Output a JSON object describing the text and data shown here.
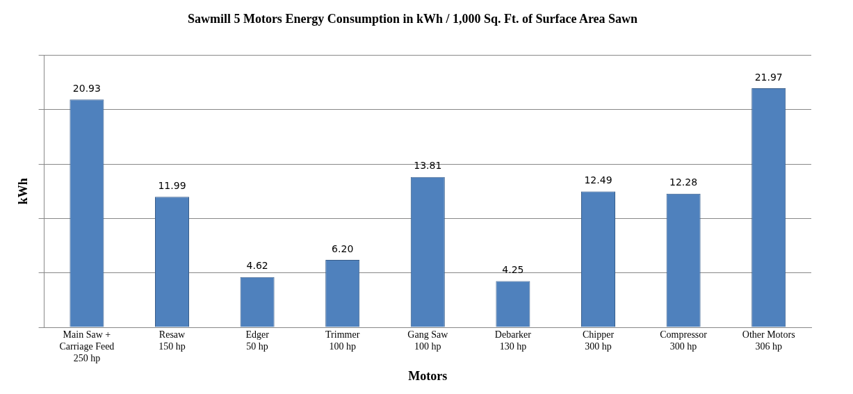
{
  "chart_data": {
    "type": "bar",
    "title": "Sawmill 5 Motors Energy Consumption in kWh / 1,000 Sq. Ft. of Surface Area Sawn",
    "xlabel": "Motors",
    "ylabel": "kWh",
    "categories": [
      "Main Saw +\nCarriage Feed\n250 hp",
      "Resaw\n150 hp",
      "Edger\n50 hp",
      "Trimmer\n100 hp",
      "Gang Saw\n100 hp",
      "Debarker\n130 hp",
      "Chipper\n300 hp",
      "Compressor\n300 hp",
      "Other Motors\n306 hp"
    ],
    "values": [
      20.93,
      11.99,
      4.62,
      6.2,
      13.81,
      4.25,
      12.49,
      12.28,
      21.97
    ],
    "value_labels": [
      "20.93",
      "11.99",
      "4.62",
      "6.20",
      "13.81",
      "4.25",
      "12.49",
      "12.28",
      "21.97"
    ],
    "color": "#4f81bd",
    "ylim": [
      0,
      25
    ],
    "yticks": [
      {
        "value": 0,
        "label": null
      },
      {
        "value": 5,
        "label": null
      },
      {
        "value": 10,
        "label": null
      },
      {
        "value": 15,
        "label": null
      },
      {
        "value": 20,
        "label": null
      },
      {
        "value": 25,
        "label": null
      }
    ],
    "grid": "y"
  }
}
